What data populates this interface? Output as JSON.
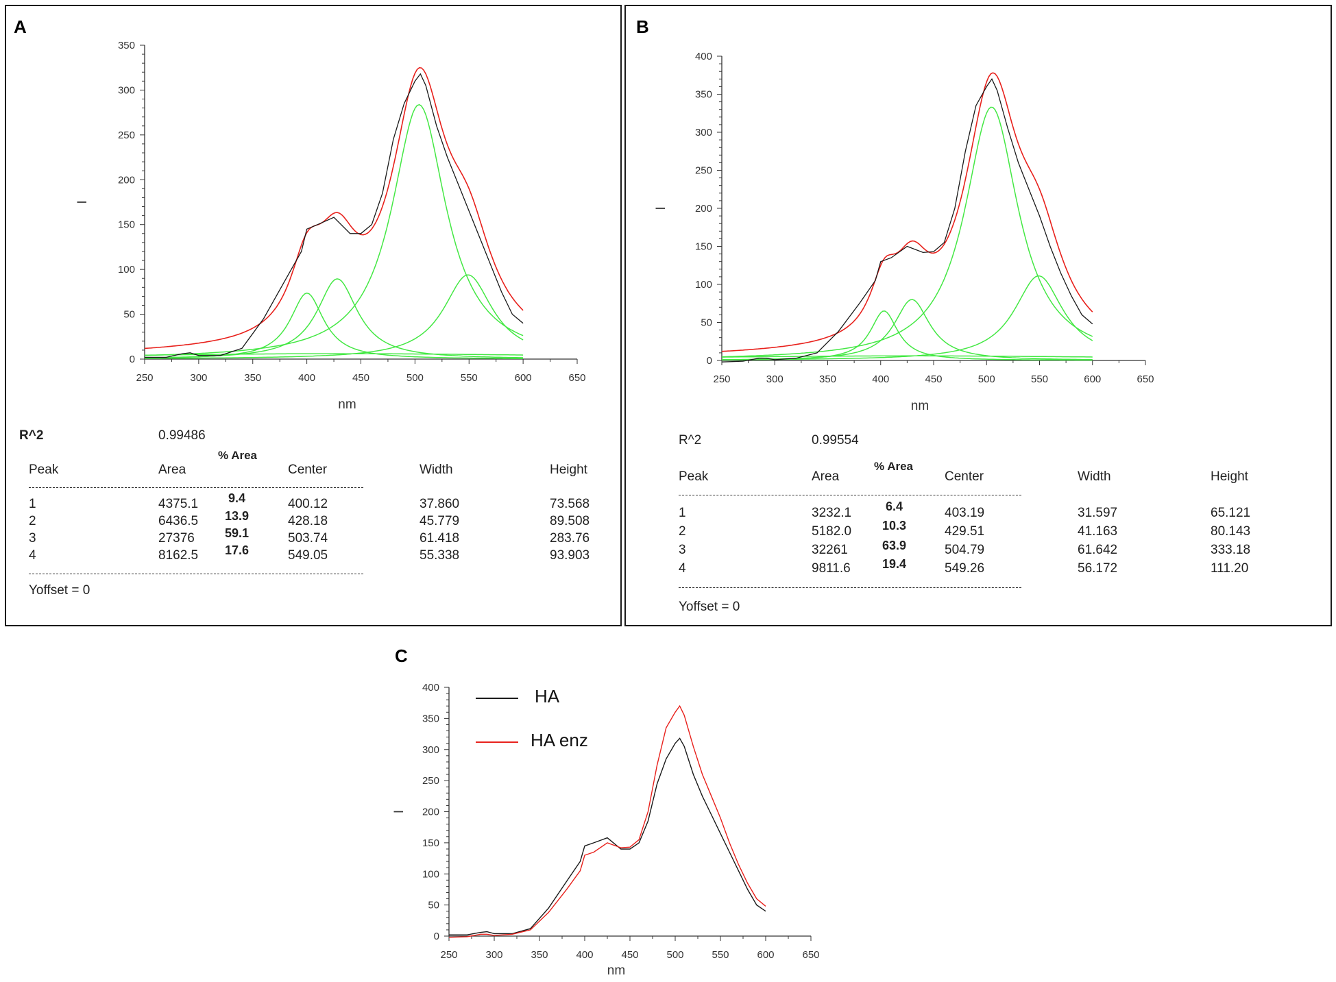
{
  "panels": [
    {
      "id": "A",
      "label": "A",
      "r2_label": "R^2",
      "r2_value": "0.99486",
      "headers": {
        "peak": "Peak",
        "area": "Area",
        "pct_area": "% Area",
        "center": "Center",
        "width": "Width",
        "height": "Height"
      },
      "rows": [
        {
          "peak": "1",
          "area": "4375.1",
          "pct": "9.4",
          "center": "400.12",
          "width": "37.860",
          "height": "73.568"
        },
        {
          "peak": "2",
          "area": "6436.5",
          "pct": "13.9",
          "center": "428.18",
          "width": "45.779",
          "height": "89.508"
        },
        {
          "peak": "3",
          "area": "27376",
          "pct": "59.1",
          "center": "503.74",
          "width": "61.418",
          "height": "283.76"
        },
        {
          "peak": "4",
          "area": "8162.5",
          "pct": "17.6",
          "center": "549.05",
          "width": "55.338",
          "height": "93.903"
        }
      ],
      "yoffset": "Yoffset = 0"
    },
    {
      "id": "B",
      "label": "B",
      "r2_label": "R^2",
      "r2_value": "0.99554",
      "headers": {
        "peak": "Peak",
        "area": "Area",
        "pct_area": "% Area",
        "center": "Center",
        "width": "Width",
        "height": "Height"
      },
      "rows": [
        {
          "peak": "1",
          "area": "3232.1",
          "pct": "6.4",
          "center": "403.19",
          "width": "31.597",
          "height": "65.121"
        },
        {
          "peak": "2",
          "area": "5182.0",
          "pct": "10.3",
          "center": "429.51",
          "width": "41.163",
          "height": "80.143"
        },
        {
          "peak": "3",
          "area": "32261",
          "pct": "63.9",
          "center": "504.79",
          "width": "61.642",
          "height": "333.18"
        },
        {
          "peak": "4",
          "area": "9811.6",
          "pct": "19.4",
          "center": "549.26",
          "width": "56.172",
          "height": "111.20"
        }
      ],
      "yoffset": "Yoffset = 0"
    },
    {
      "id": "C",
      "label": "C"
    }
  ],
  "colors": {
    "data": "#1a1a1a",
    "fit": "#e8211c",
    "component": "#44e844",
    "enz": "#e8211c"
  },
  "chart_data": [
    {
      "id": "A",
      "type": "line",
      "xlabel": "nm",
      "ylabel": "I",
      "xlim": [
        250,
        650
      ],
      "ylim": [
        0,
        350
      ],
      "xticks": [
        250,
        300,
        350,
        400,
        450,
        500,
        550,
        600,
        650
      ],
      "yticks": [
        0,
        50,
        100,
        150,
        200,
        250,
        300,
        350
      ],
      "x_range": [
        250,
        600
      ],
      "components": [
        {
          "center": 400.12,
          "width": 37.86,
          "height": 73.568
        },
        {
          "center": 428.18,
          "width": 45.779,
          "height": 89.508
        },
        {
          "center": 503.74,
          "width": 61.418,
          "height": 283.76
        },
        {
          "center": 549.05,
          "width": 55.338,
          "height": 93.903
        }
      ],
      "baseline": {
        "center": 430,
        "width": 600,
        "height": 6
      },
      "measured": {
        "x": [
          250,
          270,
          285,
          292,
          300,
          320,
          340,
          360,
          380,
          395,
          400,
          410,
          425,
          440,
          450,
          460,
          470,
          480,
          490,
          500,
          505,
          510,
          520,
          530,
          540,
          550,
          560,
          570,
          580,
          590,
          600
        ],
        "y": [
          2,
          2,
          6,
          7,
          4,
          4,
          12,
          45,
          88,
          120,
          145,
          150,
          158,
          140,
          140,
          150,
          185,
          245,
          285,
          310,
          318,
          305,
          260,
          225,
          195,
          165,
          135,
          105,
          75,
          50,
          40
        ]
      }
    },
    {
      "id": "B",
      "type": "line",
      "xlabel": "nm",
      "ylabel": "I",
      "xlim": [
        250,
        650
      ],
      "ylim": [
        0,
        400
      ],
      "xticks": [
        250,
        300,
        350,
        400,
        450,
        500,
        550,
        600,
        650
      ],
      "yticks": [
        0,
        50,
        100,
        150,
        200,
        250,
        300,
        350,
        400
      ],
      "x_range": [
        250,
        600
      ],
      "components": [
        {
          "center": 403.19,
          "width": 31.597,
          "height": 65.121
        },
        {
          "center": 429.51,
          "width": 41.163,
          "height": 80.143
        },
        {
          "center": 504.79,
          "width": 61.642,
          "height": 333.18
        },
        {
          "center": 549.26,
          "width": 56.172,
          "height": 111.2
        }
      ],
      "baseline": {
        "center": 430,
        "width": 600,
        "height": 6
      },
      "measured": {
        "x": [
          250,
          270,
          285,
          292,
          300,
          320,
          340,
          360,
          380,
          395,
          400,
          410,
          425,
          440,
          450,
          460,
          470,
          480,
          490,
          500,
          505,
          510,
          520,
          530,
          540,
          550,
          560,
          570,
          580,
          590,
          600
        ],
        "y": [
          -2,
          -1,
          3,
          3,
          1,
          3,
          10,
          38,
          75,
          105,
          130,
          135,
          150,
          142,
          143,
          155,
          200,
          275,
          335,
          360,
          370,
          355,
          305,
          260,
          225,
          190,
          150,
          115,
          85,
          60,
          48
        ]
      }
    },
    {
      "id": "C",
      "type": "line",
      "xlabel": "nm",
      "ylabel": "I",
      "xlim": [
        250,
        650
      ],
      "ylim": [
        0,
        400
      ],
      "xticks": [
        250,
        300,
        350,
        400,
        450,
        500,
        550,
        600,
        650
      ],
      "yticks": [
        0,
        50,
        100,
        150,
        200,
        250,
        300,
        350,
        400
      ],
      "legend": [
        "HA",
        "HA enz"
      ],
      "series": [
        {
          "name": "HA",
          "x": [
            250,
            270,
            285,
            292,
            300,
            320,
            340,
            360,
            380,
            395,
            400,
            410,
            425,
            440,
            450,
            460,
            470,
            480,
            490,
            500,
            505,
            510,
            520,
            530,
            540,
            550,
            560,
            570,
            580,
            590,
            600
          ],
          "y": [
            2,
            2,
            6,
            7,
            4,
            4,
            12,
            45,
            88,
            120,
            145,
            150,
            158,
            140,
            140,
            150,
            185,
            245,
            285,
            310,
            318,
            305,
            260,
            225,
            195,
            165,
            135,
            105,
            75,
            50,
            40
          ]
        },
        {
          "name": "HA enz",
          "x": [
            250,
            270,
            285,
            292,
            300,
            320,
            340,
            360,
            380,
            395,
            400,
            410,
            425,
            440,
            450,
            460,
            470,
            480,
            490,
            500,
            505,
            510,
            520,
            530,
            540,
            550,
            560,
            570,
            580,
            590,
            600
          ],
          "y": [
            -2,
            -1,
            3,
            3,
            1,
            3,
            10,
            38,
            75,
            105,
            130,
            135,
            150,
            142,
            143,
            155,
            200,
            275,
            335,
            360,
            370,
            355,
            305,
            260,
            225,
            190,
            150,
            115,
            85,
            60,
            48
          ]
        }
      ]
    }
  ]
}
